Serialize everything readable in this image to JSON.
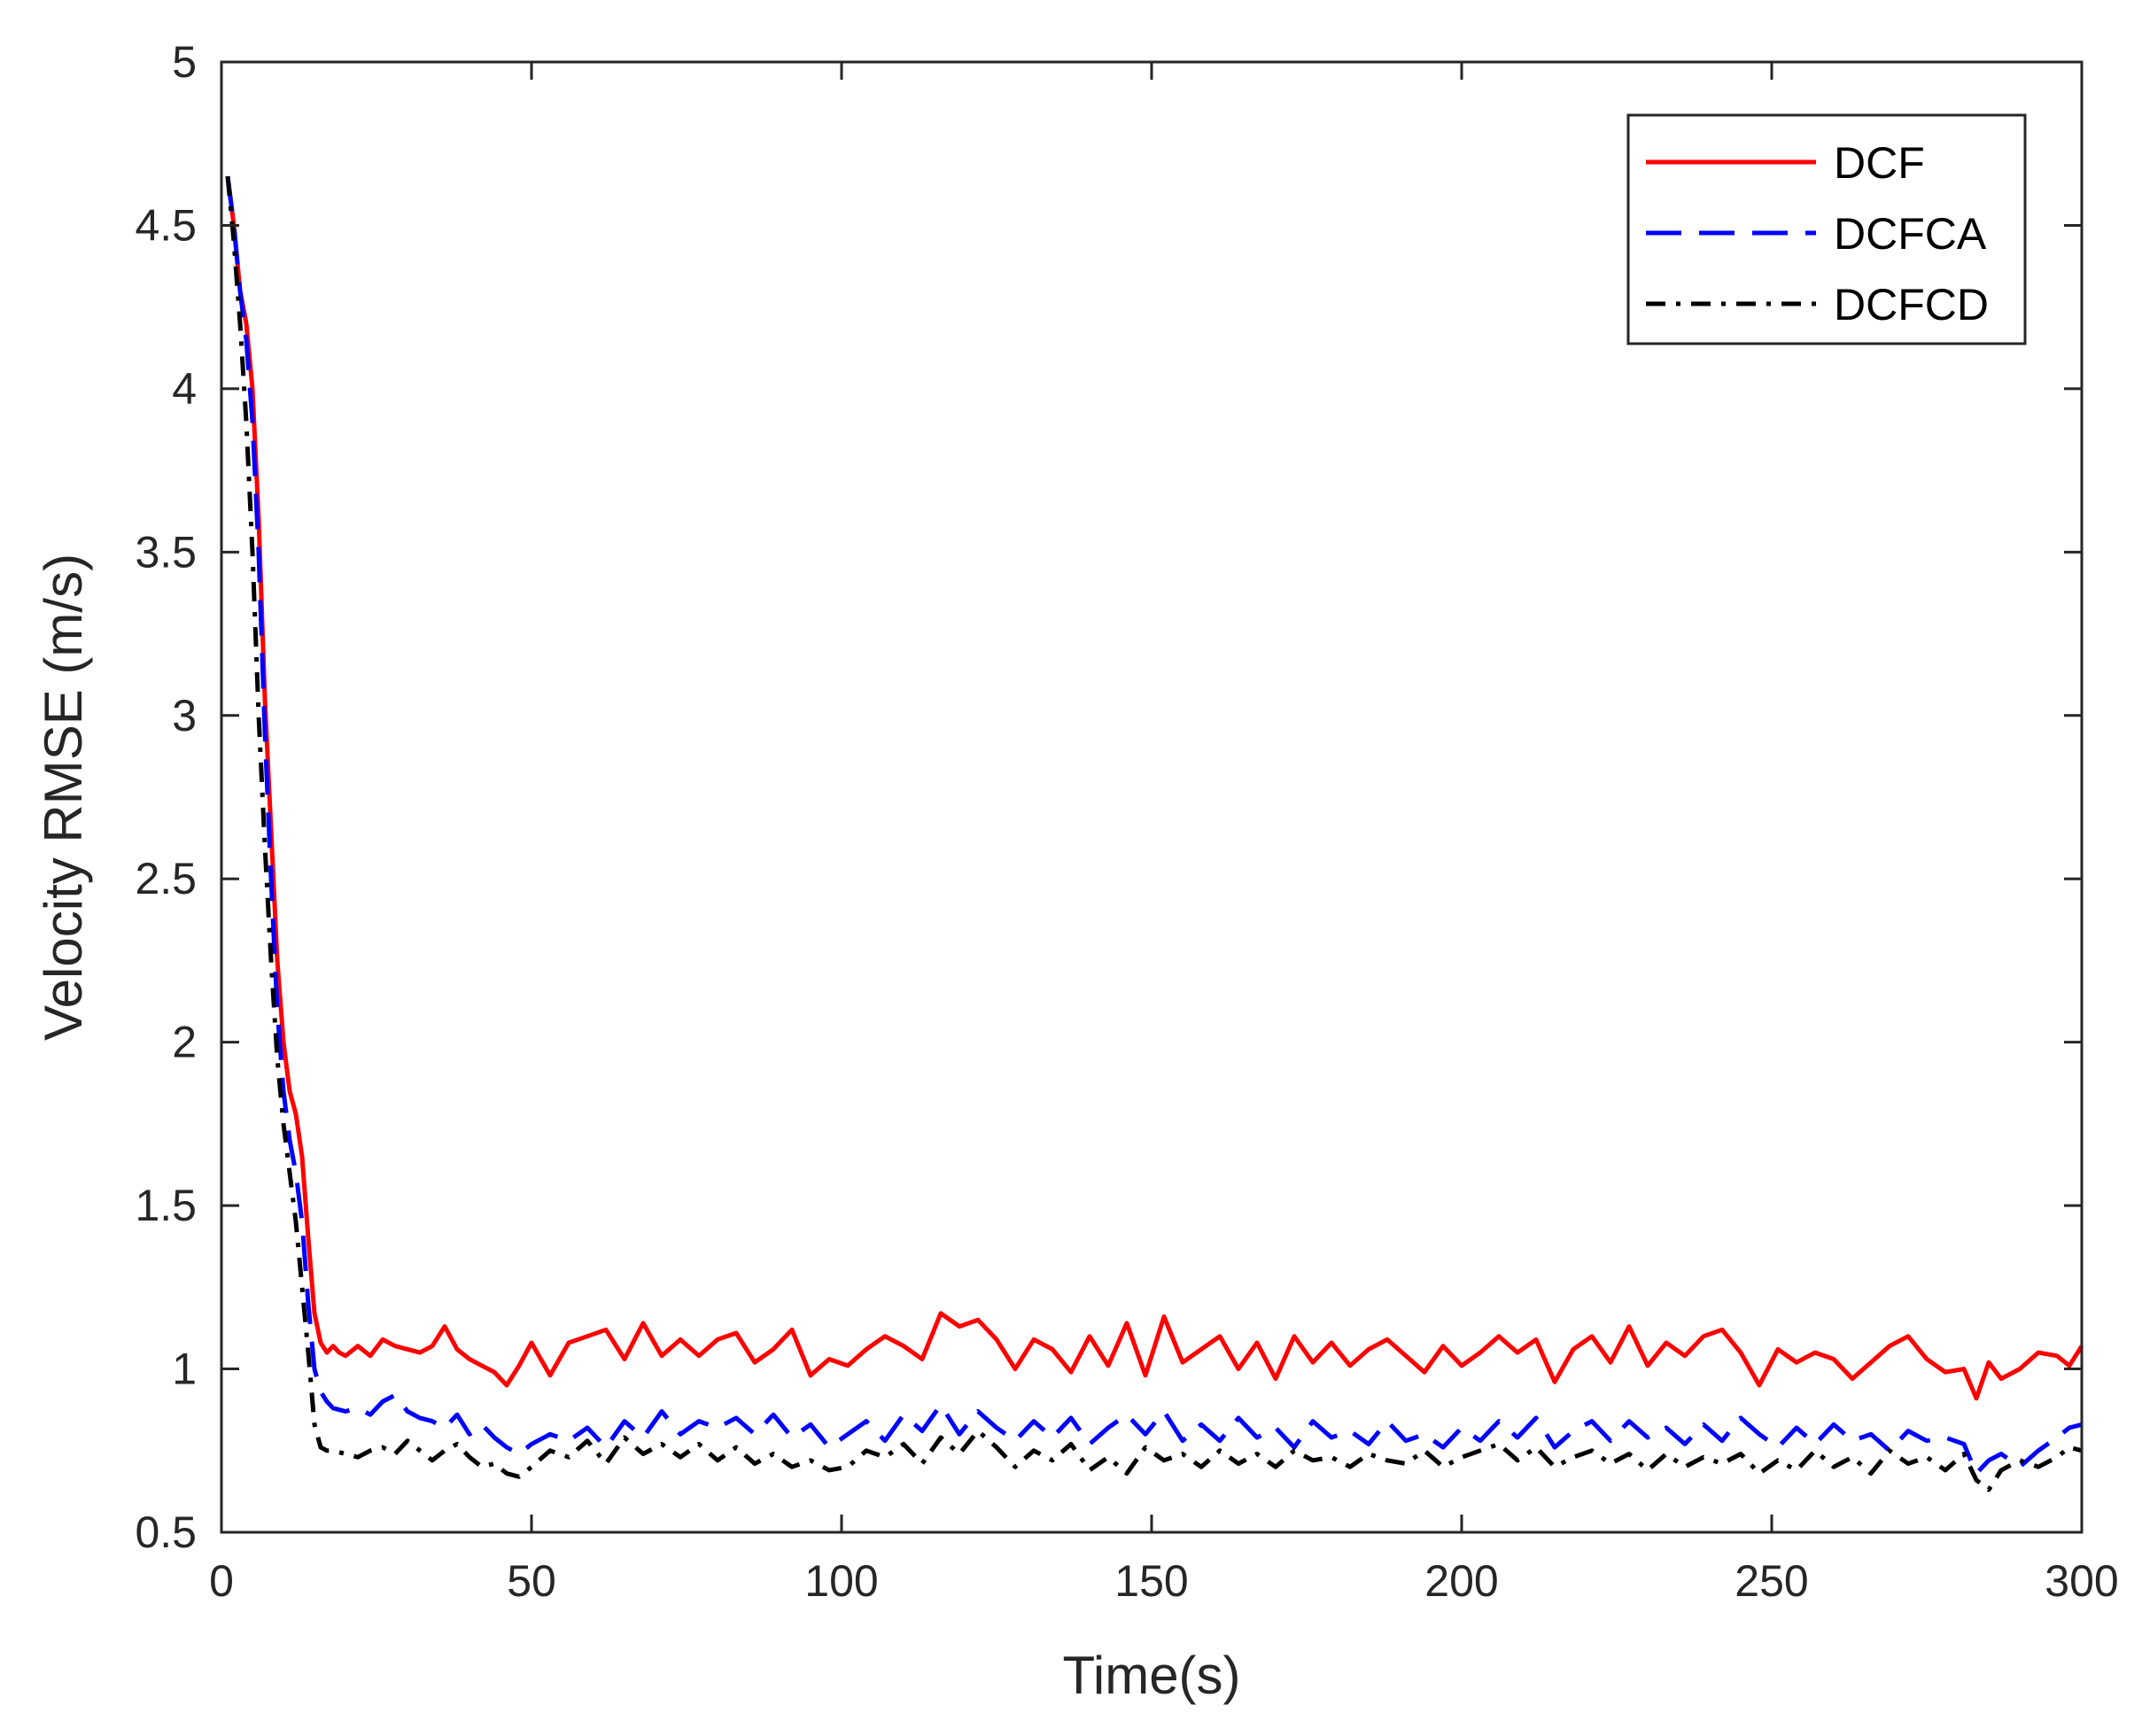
{
  "chart_data": {
    "type": "line",
    "title": "",
    "xlabel": "Time(s)",
    "ylabel": "Velocity RMSE (m/s)",
    "xlim": [
      0,
      300
    ],
    "ylim": [
      0.5,
      5
    ],
    "xticks": [
      0,
      50,
      100,
      150,
      200,
      250,
      300
    ],
    "yticks": [
      0.5,
      1,
      1.5,
      2,
      2.5,
      3,
      3.5,
      4,
      4.5,
      5
    ],
    "xtick_labels": [
      "0",
      "50",
      "100",
      "150",
      "200",
      "250",
      "300"
    ],
    "ytick_labels": [
      "0.5",
      "1",
      "1.5",
      "2",
      "2.5",
      "3",
      "3.5",
      "4",
      "4.5",
      "5"
    ],
    "legend_position": "top-right",
    "grid": false,
    "series": [
      {
        "name": "DCF",
        "color": "#ff0000",
        "style": "solid",
        "x": [
          1,
          2,
          3,
          4,
          5,
          6,
          7,
          8,
          9,
          10,
          11,
          12,
          13,
          14,
          15,
          16,
          17,
          18,
          19,
          20,
          22,
          24,
          26,
          28,
          30,
          32,
          34,
          36,
          38,
          40,
          42,
          44,
          46,
          48,
          50,
          53,
          56,
          59,
          62,
          65,
          68,
          71,
          74,
          77,
          80,
          83,
          86,
          89,
          92,
          95,
          98,
          101,
          104,
          107,
          110,
          113,
          116,
          119,
          122,
          125,
          128,
          131,
          134,
          137,
          140,
          143,
          146,
          149,
          152,
          155,
          158,
          161,
          164,
          167,
          170,
          173,
          176,
          179,
          182,
          185,
          188,
          191,
          194,
          197,
          200,
          203,
          206,
          209,
          212,
          215,
          218,
          221,
          224,
          227,
          230,
          233,
          236,
          239,
          242,
          245,
          248,
          251,
          254,
          257,
          260,
          263,
          266,
          269,
          272,
          275,
          278,
          281,
          283,
          285,
          287,
          290,
          293,
          296,
          298,
          300
        ],
        "values": [
          4.65,
          4.5,
          4.3,
          4.2,
          4.0,
          3.6,
          3.05,
          2.65,
          2.25,
          2.0,
          1.85,
          1.78,
          1.65,
          1.4,
          1.17,
          1.08,
          1.05,
          1.07,
          1.05,
          1.04,
          1.07,
          1.04,
          1.09,
          1.07,
          1.06,
          1.05,
          1.07,
          1.13,
          1.06,
          1.03,
          1.01,
          0.99,
          0.95,
          1.01,
          1.08,
          0.98,
          1.08,
          1.1,
          1.12,
          1.03,
          1.14,
          1.04,
          1.09,
          1.04,
          1.09,
          1.11,
          1.02,
          1.06,
          1.12,
          0.98,
          1.03,
          1.01,
          1.06,
          1.1,
          1.07,
          1.03,
          1.17,
          1.13,
          1.15,
          1.09,
          1.0,
          1.09,
          1.06,
          0.99,
          1.1,
          1.01,
          1.14,
          0.98,
          1.16,
          1.02,
          1.06,
          1.1,
          1.0,
          1.08,
          0.97,
          1.1,
          1.02,
          1.08,
          1.01,
          1.06,
          1.09,
          1.04,
          0.99,
          1.07,
          1.01,
          1.05,
          1.1,
          1.05,
          1.09,
          0.96,
          1.06,
          1.1,
          1.02,
          1.13,
          1.01,
          1.08,
          1.04,
          1.1,
          1.12,
          1.05,
          0.95,
          1.06,
          1.02,
          1.05,
          1.03,
          0.97,
          1.02,
          1.07,
          1.1,
          1.03,
          0.99,
          1.0,
          0.91,
          1.02,
          0.97,
          1.0,
          1.05,
          1.04,
          1.01,
          1.07
        ]
      },
      {
        "name": "DCFCA",
        "color": "#0000ff",
        "style": "dashed",
        "x": [
          1,
          2,
          3,
          4,
          5,
          6,
          7,
          8,
          9,
          10,
          11,
          12,
          13,
          14,
          15,
          16,
          17,
          18,
          20,
          22,
          24,
          26,
          28,
          30,
          32,
          34,
          36,
          38,
          40,
          42,
          44,
          46,
          48,
          50,
          53,
          56,
          59,
          62,
          65,
          68,
          71,
          74,
          77,
          80,
          83,
          86,
          89,
          92,
          95,
          98,
          101,
          104,
          107,
          110,
          113,
          116,
          119,
          122,
          125,
          128,
          131,
          134,
          137,
          140,
          143,
          146,
          149,
          152,
          155,
          158,
          161,
          164,
          167,
          170,
          173,
          176,
          179,
          182,
          185,
          188,
          191,
          194,
          197,
          200,
          203,
          206,
          209,
          212,
          215,
          218,
          221,
          224,
          227,
          230,
          233,
          236,
          239,
          242,
          245,
          248,
          251,
          254,
          257,
          260,
          263,
          266,
          269,
          272,
          275,
          278,
          281,
          283,
          285,
          287,
          290,
          293,
          296,
          298,
          300
        ],
        "values": [
          4.65,
          4.5,
          4.3,
          4.15,
          3.9,
          3.5,
          2.95,
          2.5,
          2.1,
          1.85,
          1.7,
          1.6,
          1.45,
          1.2,
          1.0,
          0.93,
          0.9,
          0.88,
          0.87,
          0.88,
          0.86,
          0.9,
          0.92,
          0.87,
          0.85,
          0.84,
          0.82,
          0.86,
          0.8,
          0.83,
          0.79,
          0.76,
          0.74,
          0.77,
          0.8,
          0.78,
          0.82,
          0.76,
          0.84,
          0.79,
          0.87,
          0.8,
          0.84,
          0.82,
          0.85,
          0.8,
          0.86,
          0.79,
          0.83,
          0.76,
          0.8,
          0.84,
          0.78,
          0.86,
          0.81,
          0.89,
          0.8,
          0.87,
          0.82,
          0.78,
          0.84,
          0.79,
          0.85,
          0.77,
          0.82,
          0.86,
          0.8,
          0.87,
          0.78,
          0.83,
          0.78,
          0.85,
          0.79,
          0.82,
          0.76,
          0.84,
          0.79,
          0.81,
          0.77,
          0.84,
          0.78,
          0.8,
          0.76,
          0.82,
          0.78,
          0.84,
          0.79,
          0.85,
          0.76,
          0.81,
          0.84,
          0.78,
          0.84,
          0.79,
          0.82,
          0.77,
          0.83,
          0.78,
          0.85,
          0.8,
          0.76,
          0.82,
          0.77,
          0.83,
          0.78,
          0.8,
          0.75,
          0.81,
          0.78,
          0.79,
          0.77,
          0.68,
          0.72,
          0.74,
          0.7,
          0.75,
          0.79,
          0.82,
          0.83
        ]
      },
      {
        "name": "DCFCD",
        "color": "#000000",
        "style": "dashdot",
        "x": [
          1,
          2,
          3,
          4,
          5,
          6,
          7,
          8,
          9,
          10,
          11,
          12,
          13,
          14,
          15,
          16,
          17,
          18,
          20,
          22,
          24,
          26,
          28,
          30,
          32,
          34,
          36,
          38,
          40,
          42,
          44,
          46,
          48,
          50,
          53,
          56,
          59,
          62,
          65,
          68,
          71,
          74,
          77,
          80,
          83,
          86,
          89,
          92,
          95,
          98,
          101,
          104,
          107,
          110,
          113,
          116,
          119,
          122,
          125,
          128,
          131,
          134,
          137,
          140,
          143,
          146,
          149,
          152,
          155,
          158,
          161,
          164,
          167,
          170,
          173,
          176,
          179,
          182,
          185,
          188,
          191,
          194,
          197,
          200,
          203,
          206,
          209,
          212,
          215,
          218,
          221,
          224,
          227,
          230,
          233,
          236,
          239,
          242,
          245,
          248,
          251,
          254,
          257,
          260,
          263,
          266,
          269,
          272,
          275,
          278,
          281,
          283,
          285,
          287,
          290,
          293,
          296,
          298,
          300
        ],
        "values": [
          4.65,
          4.45,
          4.2,
          3.9,
          3.5,
          3.0,
          2.6,
          2.25,
          1.95,
          1.75,
          1.6,
          1.45,
          1.25,
          1.05,
          0.83,
          0.76,
          0.75,
          0.75,
          0.74,
          0.73,
          0.75,
          0.76,
          0.74,
          0.78,
          0.75,
          0.72,
          0.75,
          0.77,
          0.73,
          0.7,
          0.71,
          0.68,
          0.67,
          0.7,
          0.75,
          0.73,
          0.78,
          0.71,
          0.79,
          0.74,
          0.77,
          0.73,
          0.77,
          0.72,
          0.76,
          0.71,
          0.74,
          0.7,
          0.72,
          0.69,
          0.7,
          0.75,
          0.73,
          0.77,
          0.71,
          0.79,
          0.74,
          0.81,
          0.76,
          0.7,
          0.75,
          0.72,
          0.77,
          0.69,
          0.73,
          0.68,
          0.76,
          0.72,
          0.74,
          0.7,
          0.75,
          0.71,
          0.74,
          0.7,
          0.75,
          0.72,
          0.73,
          0.7,
          0.74,
          0.72,
          0.71,
          0.75,
          0.7,
          0.73,
          0.75,
          0.77,
          0.72,
          0.76,
          0.7,
          0.73,
          0.75,
          0.71,
          0.74,
          0.69,
          0.74,
          0.7,
          0.73,
          0.71,
          0.74,
          0.68,
          0.72,
          0.69,
          0.75,
          0.7,
          0.73,
          0.68,
          0.75,
          0.71,
          0.73,
          0.69,
          0.74,
          0.66,
          0.63,
          0.69,
          0.72,
          0.7,
          0.73,
          0.76,
          0.75
        ]
      }
    ]
  }
}
